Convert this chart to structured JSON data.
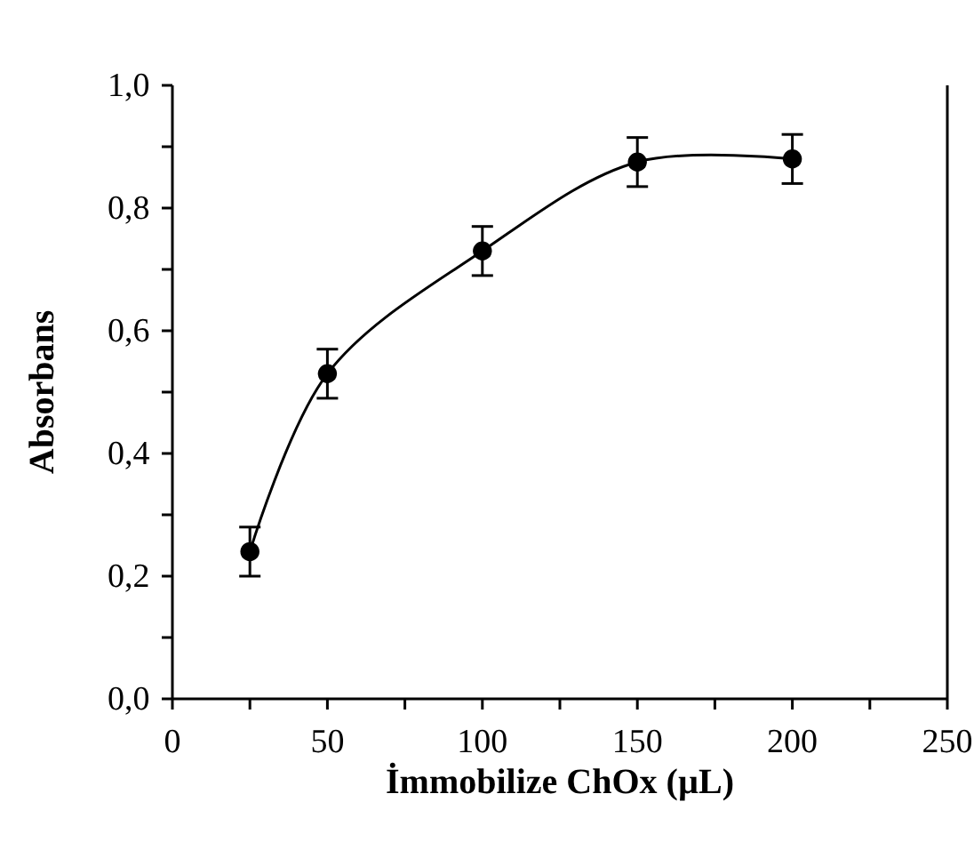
{
  "chart_data": {
    "type": "line",
    "xlabel": "İmmobilize ChOx (µL)",
    "ylabel": "Absorbans",
    "x": [
      25,
      50,
      100,
      150,
      200
    ],
    "series": [
      {
        "color": "#000000",
        "values": [
          0.24,
          0.53,
          0.73,
          0.875,
          0.88
        ],
        "errors": [
          0.04,
          0.04,
          0.04,
          0.04,
          0.04
        ]
      }
    ],
    "marker": "circle",
    "line_style": "solid",
    "xlim": [
      0,
      250
    ],
    "xticks": [
      0,
      {
        "value": 25,
        "label": null
      },
      50,
      {
        "value": 75,
        "label": null
      },
      100,
      {
        "value": 125,
        "label": null
      },
      150,
      {
        "value": 175,
        "label": null
      },
      200,
      {
        "value": 225,
        "label": null
      },
      250
    ],
    "ylim": [
      0,
      1
    ],
    "yticks": [
      {
        "value": 0,
        "label": "0,0"
      },
      {
        "value": 0.1,
        "label": null
      },
      {
        "value": 0.2,
        "label": "0,2"
      },
      {
        "value": 0.3,
        "label": null
      },
      {
        "value": 0.4,
        "label": "0,4"
      },
      {
        "value": 0.5,
        "label": null
      },
      {
        "value": 0.6,
        "label": "0,6"
      },
      {
        "value": 0.7,
        "label": null
      },
      {
        "value": 0.8,
        "label": "0,8"
      },
      {
        "value": 0.9,
        "label": null
      },
      {
        "value": 1,
        "label": "1,0"
      }
    ],
    "grid": false
  }
}
